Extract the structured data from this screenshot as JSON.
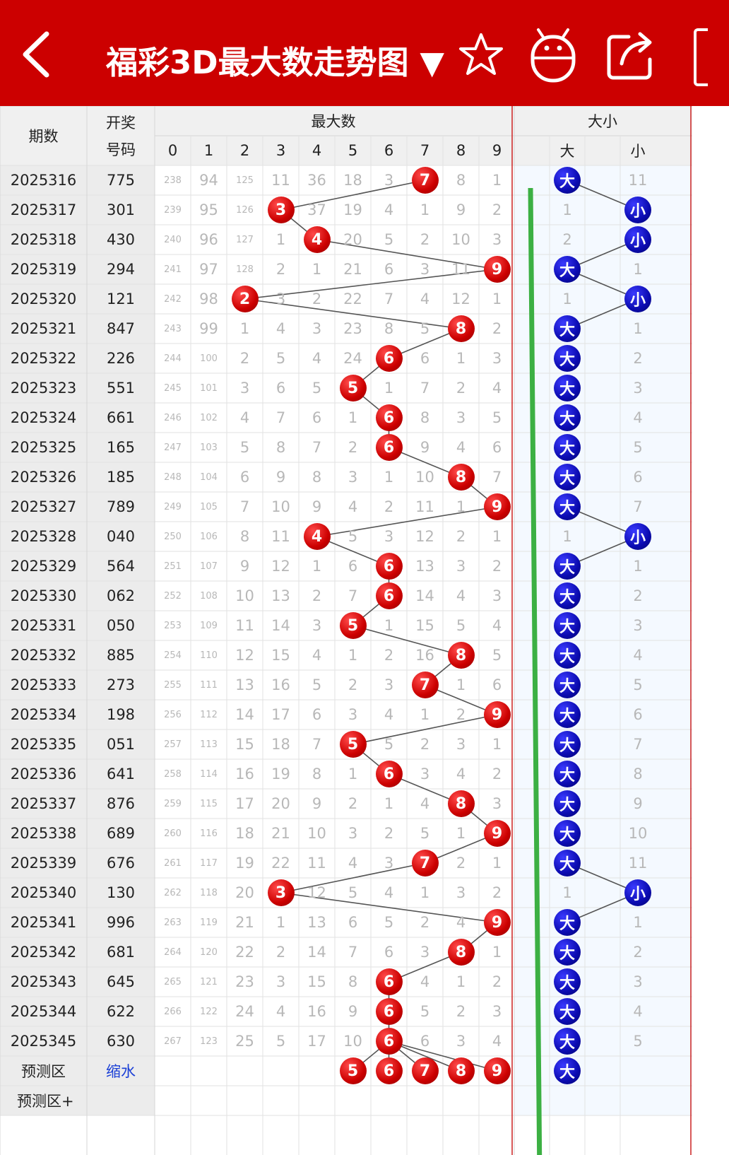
{
  "header": {
    "title": "福彩3D最大数走势图 ▼",
    "bg_color": "#cc0000"
  },
  "icons": [
    "back-arrow-icon",
    "star-icon",
    "robot-icon",
    "share-icon"
  ],
  "table": {
    "h_period": "期数",
    "h_draw": "开奖号码",
    "h_draw1": "开奖",
    "h_draw2": "号码",
    "h_max": "最大数",
    "h_size": "大小",
    "digits": [
      "0",
      "1",
      "2",
      "3",
      "4",
      "5",
      "6",
      "7",
      "8",
      "9"
    ],
    "size_labels": [
      "大",
      "小"
    ],
    "rows": [
      {
        "p": "2025316",
        "d": "775",
        "m": [
          "238",
          "94",
          "125",
          "11",
          "36",
          "18",
          "3",
          "7",
          "8",
          "1"
        ],
        "s": [
          "大",
          "11"
        ]
      },
      {
        "p": "2025317",
        "d": "301",
        "m": [
          "239",
          "95",
          "126",
          "3",
          "37",
          "19",
          "4",
          "1",
          "9",
          "2"
        ],
        "s": [
          "1",
          "小"
        ]
      },
      {
        "p": "2025318",
        "d": "430",
        "m": [
          "240",
          "96",
          "127",
          "1",
          "4",
          "20",
          "5",
          "2",
          "10",
          "3"
        ],
        "s": [
          "2",
          "小"
        ]
      },
      {
        "p": "2025319",
        "d": "294",
        "m": [
          "241",
          "97",
          "128",
          "2",
          "1",
          "21",
          "6",
          "3",
          "11",
          "9"
        ],
        "s": [
          "大",
          "1"
        ]
      },
      {
        "p": "2025320",
        "d": "121",
        "m": [
          "242",
          "98",
          "2",
          "3",
          "2",
          "22",
          "7",
          "4",
          "12",
          "1"
        ],
        "s": [
          "1",
          "小"
        ]
      },
      {
        "p": "2025321",
        "d": "847",
        "m": [
          "243",
          "99",
          "1",
          "4",
          "3",
          "23",
          "8",
          "5",
          "8",
          "2"
        ],
        "s": [
          "大",
          "1"
        ]
      },
      {
        "p": "2025322",
        "d": "226",
        "m": [
          "244",
          "100",
          "2",
          "5",
          "4",
          "24",
          "6",
          "6",
          "1",
          "3"
        ],
        "s": [
          "大",
          "2"
        ]
      },
      {
        "p": "2025323",
        "d": "551",
        "m": [
          "245",
          "101",
          "3",
          "6",
          "5",
          "5",
          "1",
          "7",
          "2",
          "4"
        ],
        "s": [
          "大",
          "3"
        ]
      },
      {
        "p": "2025324",
        "d": "661",
        "m": [
          "246",
          "102",
          "4",
          "7",
          "6",
          "1",
          "6",
          "8",
          "3",
          "5"
        ],
        "s": [
          "大",
          "4"
        ]
      },
      {
        "p": "2025325",
        "d": "165",
        "m": [
          "247",
          "103",
          "5",
          "8",
          "7",
          "2",
          "6",
          "9",
          "4",
          "6"
        ],
        "s": [
          "大",
          "5"
        ]
      },
      {
        "p": "2025326",
        "d": "185",
        "m": [
          "248",
          "104",
          "6",
          "9",
          "8",
          "3",
          "1",
          "10",
          "8",
          "7"
        ],
        "s": [
          "大",
          "6"
        ]
      },
      {
        "p": "2025327",
        "d": "789",
        "m": [
          "249",
          "105",
          "7",
          "10",
          "9",
          "4",
          "2",
          "11",
          "1",
          "9"
        ],
        "s": [
          "大",
          "7"
        ]
      },
      {
        "p": "2025328",
        "d": "040",
        "m": [
          "250",
          "106",
          "8",
          "11",
          "4",
          "5",
          "3",
          "12",
          "2",
          "1"
        ],
        "s": [
          "1",
          "小"
        ]
      },
      {
        "p": "2025329",
        "d": "564",
        "m": [
          "251",
          "107",
          "9",
          "12",
          "1",
          "6",
          "6",
          "13",
          "3",
          "2"
        ],
        "s": [
          "大",
          "1"
        ]
      },
      {
        "p": "2025330",
        "d": "062",
        "m": [
          "252",
          "108",
          "10",
          "13",
          "2",
          "7",
          "6",
          "14",
          "4",
          "3"
        ],
        "s": [
          "大",
          "2"
        ]
      },
      {
        "p": "2025331",
        "d": "050",
        "m": [
          "253",
          "109",
          "11",
          "14",
          "3",
          "5",
          "1",
          "15",
          "5",
          "4"
        ],
        "s": [
          "大",
          "3"
        ]
      },
      {
        "p": "2025332",
        "d": "885",
        "m": [
          "254",
          "110",
          "12",
          "15",
          "4",
          "1",
          "2",
          "16",
          "8",
          "5"
        ],
        "s": [
          "大",
          "4"
        ]
      },
      {
        "p": "2025333",
        "d": "273",
        "m": [
          "255",
          "111",
          "13",
          "16",
          "5",
          "2",
          "3",
          "7",
          "1",
          "6"
        ],
        "s": [
          "大",
          "5"
        ]
      },
      {
        "p": "2025334",
        "d": "198",
        "m": [
          "256",
          "112",
          "14",
          "17",
          "6",
          "3",
          "4",
          "1",
          "2",
          "9"
        ],
        "s": [
          "大",
          "6"
        ]
      },
      {
        "p": "2025335",
        "d": "051",
        "m": [
          "257",
          "113",
          "15",
          "18",
          "7",
          "5",
          "5",
          "2",
          "3",
          "1"
        ],
        "s": [
          "大",
          "7"
        ]
      },
      {
        "p": "2025336",
        "d": "641",
        "m": [
          "258",
          "114",
          "16",
          "19",
          "8",
          "1",
          "6",
          "3",
          "4",
          "2"
        ],
        "s": [
          "大",
          "8"
        ]
      },
      {
        "p": "2025337",
        "d": "876",
        "m": [
          "259",
          "115",
          "17",
          "20",
          "9",
          "2",
          "1",
          "4",
          "8",
          "3"
        ],
        "s": [
          "大",
          "9"
        ]
      },
      {
        "p": "2025338",
        "d": "689",
        "m": [
          "260",
          "116",
          "18",
          "21",
          "10",
          "3",
          "2",
          "5",
          "1",
          "9"
        ],
        "s": [
          "大",
          "10"
        ]
      },
      {
        "p": "2025339",
        "d": "676",
        "m": [
          "261",
          "117",
          "19",
          "22",
          "11",
          "4",
          "3",
          "7",
          "2",
          "1"
        ],
        "s": [
          "大",
          "11"
        ]
      },
      {
        "p": "2025340",
        "d": "130",
        "m": [
          "262",
          "118",
          "20",
          "3",
          "12",
          "5",
          "4",
          "1",
          "3",
          "2"
        ],
        "s": [
          "1",
          "小"
        ]
      },
      {
        "p": "2025341",
        "d": "996",
        "m": [
          "263",
          "119",
          "21",
          "1",
          "13",
          "6",
          "5",
          "2",
          "4",
          "9"
        ],
        "s": [
          "大",
          "1"
        ]
      },
      {
        "p": "2025342",
        "d": "681",
        "m": [
          "264",
          "120",
          "22",
          "2",
          "14",
          "7",
          "6",
          "3",
          "8",
          "1"
        ],
        "s": [
          "大",
          "2"
        ]
      },
      {
        "p": "2025343",
        "d": "645",
        "m": [
          "265",
          "121",
          "23",
          "3",
          "15",
          "8",
          "6",
          "4",
          "1",
          "2"
        ],
        "s": [
          "大",
          "3"
        ]
      },
      {
        "p": "2025344",
        "d": "622",
        "m": [
          "266",
          "122",
          "24",
          "4",
          "16",
          "9",
          "6",
          "5",
          "2",
          "3"
        ],
        "s": [
          "大",
          "4"
        ]
      },
      {
        "p": "2025345",
        "d": "630",
        "m": [
          "267",
          "123",
          "25",
          "5",
          "17",
          "10",
          "6",
          "6",
          "3",
          "4"
        ],
        "s": [
          "大",
          "5"
        ]
      }
    ],
    "hits": [
      7,
      3,
      4,
      9,
      2,
      8,
      6,
      5,
      6,
      6,
      8,
      9,
      4,
      6,
      6,
      5,
      8,
      7,
      9,
      5,
      6,
      8,
      9,
      7,
      3,
      9,
      8,
      6,
      6,
      6
    ],
    "predict": {
      "label": "预测区",
      "sub": "缩水",
      "balls": [
        "5",
        "6",
        "7",
        "8",
        "9"
      ],
      "size": "大"
    },
    "predict_plus": "预测区+"
  },
  "colors": {
    "red_ball": "#cc0000",
    "blue_ball": "#0b0bb0",
    "arrow": "#3cb043"
  }
}
